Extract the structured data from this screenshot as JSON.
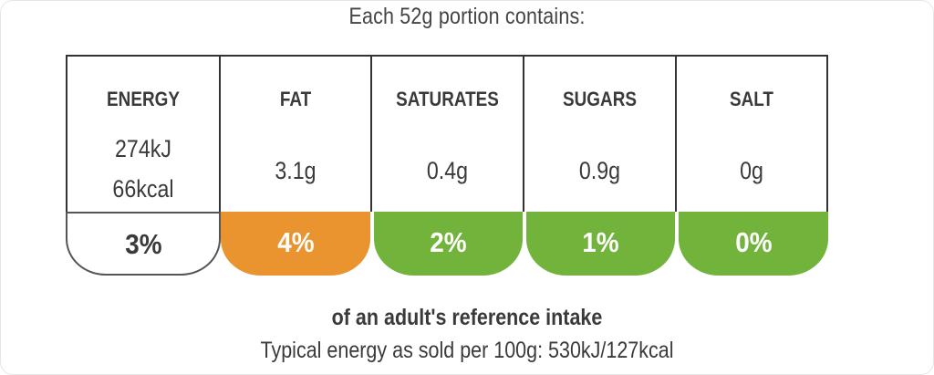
{
  "portion_text": "Each 52g portion contains:",
  "nutrients": [
    {
      "label": "ENERGY",
      "value_line1": "274kJ",
      "value_line2": "66kcal",
      "percent": "3%",
      "level": "none",
      "color": "#ffffff"
    },
    {
      "label": "FAT",
      "value": "3.1g",
      "percent": "4%",
      "level": "medium",
      "color": "#e9942f"
    },
    {
      "label": "SATURATES",
      "value": "0.4g",
      "percent": "2%",
      "level": "low",
      "color": "#72b33c"
    },
    {
      "label": "SUGARS",
      "value": "0.9g",
      "percent": "1%",
      "level": "low",
      "color": "#72b33c"
    },
    {
      "label": "SALT",
      "value": "0g",
      "percent": "0%",
      "level": "low",
      "color": "#72b33c"
    }
  ],
  "reference_text": "of an adult's reference intake",
  "typical_text": "Typical energy as sold per 100g: 530kJ/127kcal"
}
